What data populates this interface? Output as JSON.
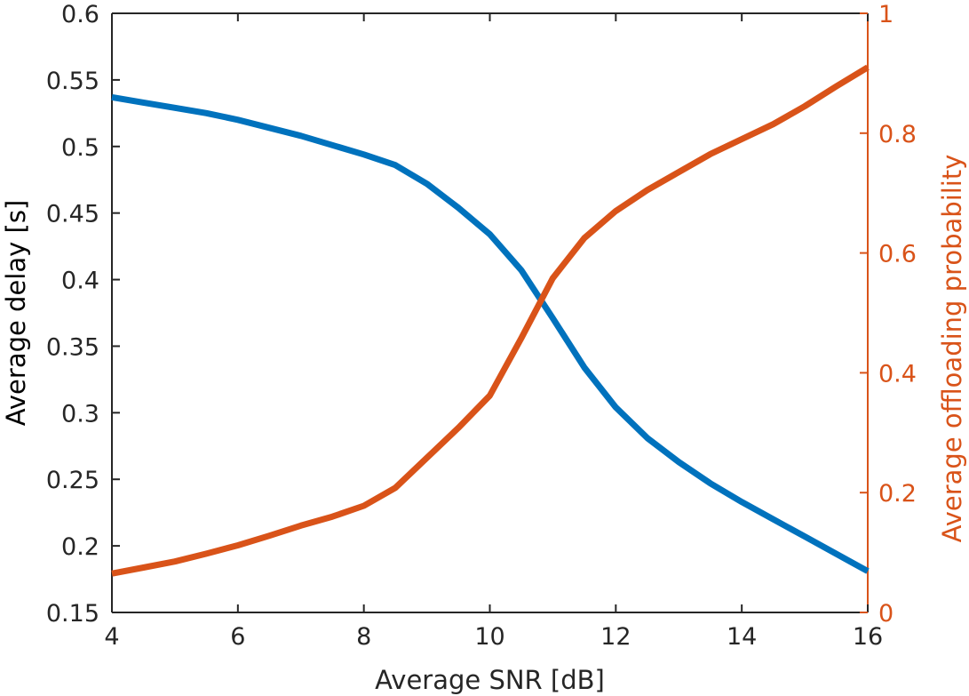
{
  "chart_data": {
    "type": "line",
    "title": "",
    "xlabel": "Average SNR [dB]",
    "ylabel_left": "Average delay [s]",
    "ylabel_right": "Average offloading probability",
    "xlim": [
      4,
      16
    ],
    "ylim_left": [
      0.15,
      0.6
    ],
    "ylim_right": [
      0,
      1
    ],
    "x_ticks": [
      "4",
      "6",
      "8",
      "10",
      "12",
      "14",
      "16"
    ],
    "y_ticks_left": [
      "0.15",
      "0.2",
      "0.25",
      "0.3",
      "0.35",
      "0.4",
      "0.45",
      "0.5",
      "0.55",
      "0.6"
    ],
    "y_ticks_right": [
      "0",
      "0.2",
      "0.4",
      "0.6",
      "0.8",
      "1"
    ],
    "grid": false,
    "legend": "none",
    "colors": {
      "delay": "#0072BD",
      "offloading": "#D95319",
      "axis": "#262626"
    },
    "series": [
      {
        "axis": "left",
        "color": "#0072BD",
        "x": [
          4,
          4.5,
          5,
          5.5,
          6,
          6.5,
          7,
          7.5,
          8,
          8.5,
          9,
          9.5,
          10,
          10.5,
          11,
          11.5,
          12,
          12.5,
          13,
          13.5,
          14,
          14.5,
          15,
          15.5,
          16
        ],
        "values": [
          0.537,
          0.533,
          0.529,
          0.525,
          0.52,
          0.514,
          0.508,
          0.501,
          0.494,
          0.486,
          0.472,
          0.454,
          0.434,
          0.407,
          0.371,
          0.334,
          0.304,
          0.281,
          0.263,
          0.247,
          0.233,
          0.22,
          0.207,
          0.194,
          0.181
        ]
      },
      {
        "axis": "right",
        "color": "#D95319",
        "x": [
          4,
          4.5,
          5,
          5.5,
          6,
          6.5,
          7,
          7.5,
          8,
          8.5,
          9,
          9.5,
          10,
          10.5,
          11,
          11.5,
          12,
          12.5,
          13,
          13.5,
          14,
          14.5,
          15,
          15.5,
          16
        ],
        "values": [
          0.065,
          0.075,
          0.085,
          0.098,
          0.112,
          0.128,
          0.145,
          0.16,
          0.178,
          0.208,
          0.258,
          0.308,
          0.362,
          0.458,
          0.558,
          0.625,
          0.67,
          0.705,
          0.735,
          0.765,
          0.79,
          0.815,
          0.845,
          0.878,
          0.91
        ]
      }
    ]
  }
}
